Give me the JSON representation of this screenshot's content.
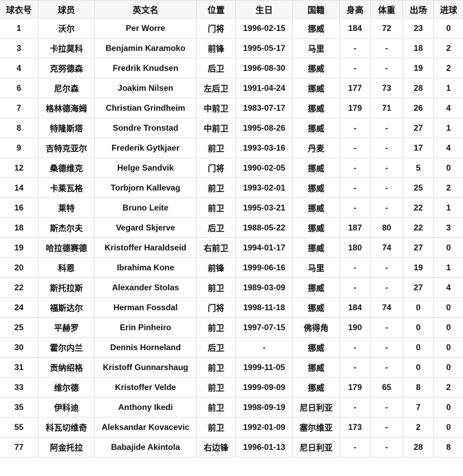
{
  "columns": [
    "球衣号",
    "球员",
    "英文名",
    "位置",
    "生日",
    "国籍",
    "身高",
    "体重",
    "出场",
    "进球"
  ],
  "rows": [
    [
      "1",
      "沃尔",
      "Per Worre",
      "门将",
      "1996-02-15",
      "挪威",
      "184",
      "72",
      "23",
      "0"
    ],
    [
      "3",
      "卡拉莫科",
      "Benjamin Karamoko",
      "前锋",
      "1995-05-17",
      "马里",
      "-",
      "-",
      "18",
      "2"
    ],
    [
      "4",
      "克努德森",
      "Fredrik Knudsen",
      "后卫",
      "1996-08-30",
      "挪威",
      "-",
      "-",
      "19",
      "2"
    ],
    [
      "6",
      "尼尔森",
      "Joakim Nilsen",
      "左后卫",
      "1991-04-24",
      "挪威",
      "177",
      "73",
      "28",
      "1"
    ],
    [
      "7",
      "格林德海姆",
      "Christian Grindheim",
      "中前卫",
      "1983-07-17",
      "挪威",
      "179",
      "71",
      "26",
      "4"
    ],
    [
      "8",
      "特隆斯塔",
      "Sondre Tronstad",
      "中前卫",
      "1995-08-26",
      "挪威",
      "-",
      "-",
      "27",
      "1"
    ],
    [
      "9",
      "吉特克亚尔",
      "Frederik Gytkjaer",
      "前卫",
      "1993-03-16",
      "丹麦",
      "-",
      "-",
      "17",
      "4"
    ],
    [
      "12",
      "桑德维克",
      "Helge Sandvik",
      "门将",
      "1990-02-05",
      "挪威",
      "-",
      "-",
      "5",
      "0"
    ],
    [
      "14",
      "卡莱瓦格",
      "Torbjorn Kallevag",
      "前卫",
      "1993-02-01",
      "挪威",
      "-",
      "-",
      "25",
      "2"
    ],
    [
      "16",
      "莱特",
      "Bruno Leite",
      "前卫",
      "1995-03-21",
      "挪威",
      "-",
      "-",
      "22",
      "1"
    ],
    [
      "18",
      "斯杰尔夫",
      "Vegard Skjerve",
      "后卫",
      "1988-05-22",
      "挪威",
      "187",
      "80",
      "22",
      "3"
    ],
    [
      "19",
      "哈拉德赛德",
      "Kristoffer Haraldseid",
      "右前卫",
      "1994-01-17",
      "挪威",
      "180",
      "74",
      "27",
      "0"
    ],
    [
      "20",
      "科恩",
      "Ibrahima Kone",
      "前锋",
      "1999-06-16",
      "马里",
      "-",
      "-",
      "19",
      "1"
    ],
    [
      "22",
      "斯托拉斯",
      "Alexander Stolas",
      "前卫",
      "1989-03-09",
      "挪威",
      "-",
      "-",
      "27",
      "4"
    ],
    [
      "24",
      "福斯达尔",
      "Herman Fossdal",
      "门将",
      "1998-11-18",
      "挪威",
      "184",
      "74",
      "0",
      "0"
    ],
    [
      "25",
      "平赫罗",
      "Erin Pinheiro",
      "前卫",
      "1997-07-15",
      "佛得角",
      "190",
      "-",
      "0",
      "0"
    ],
    [
      "30",
      "霍尔内兰",
      "Dennis Horneland",
      "后卫",
      "-",
      "挪威",
      "-",
      "-",
      "0",
      "0"
    ],
    [
      "31",
      "贡纳绍格",
      "Kristoff Gunnarshaug",
      "前卫",
      "1999-11-05",
      "挪威",
      "-",
      "-",
      "0",
      "0"
    ],
    [
      "33",
      "维尔德",
      "Kristoffer Velde",
      "前卫",
      "1999-09-09",
      "挪威",
      "179",
      "65",
      "8",
      "2"
    ],
    [
      "35",
      "伊科迪",
      "Anthony Ikedi",
      "前卫",
      "1998-09-19",
      "尼日利亚",
      "-",
      "-",
      "7",
      "0"
    ],
    [
      "55",
      "科瓦切维奇",
      "Aleksandar Kovacevic",
      "前卫",
      "1992-01-09",
      "塞尔维亚",
      "173",
      "-",
      "2",
      "0"
    ],
    [
      "77",
      "阿金托拉",
      "Babajide Akintola",
      "右边锋",
      "1996-01-13",
      "尼日利亚",
      "-",
      "-",
      "28",
      "8"
    ]
  ]
}
